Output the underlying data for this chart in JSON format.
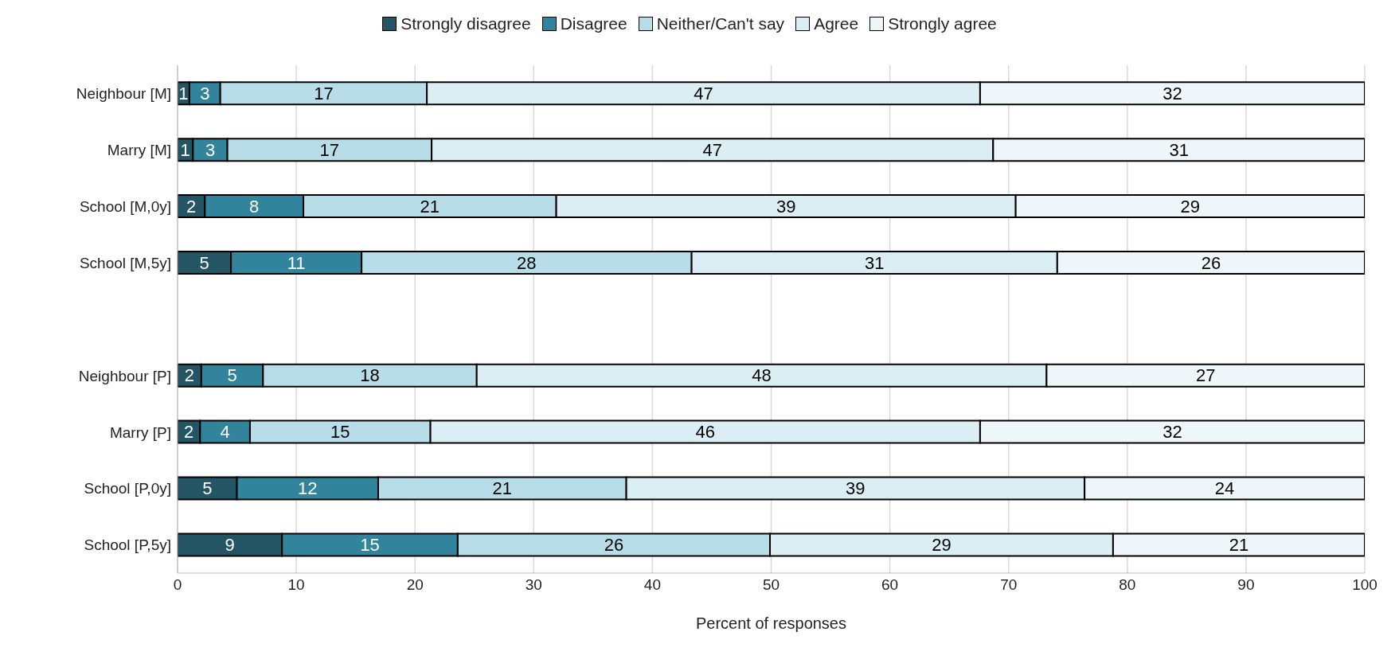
{
  "chart_data": {
    "type": "bar",
    "orientation": "horizontal",
    "stacked": true,
    "xlabel": "Percent of responses",
    "categories": [
      "Neighbour [M]",
      "Marry [M]",
      "School [M,0y]",
      "School [M,5y]",
      null,
      "Neighbour [P]",
      "Marry [P]",
      "School [P,0y]",
      "School [P,5y]"
    ],
    "series": [
      {
        "name": "Strongly disagree",
        "color": "#235565",
        "values": [
          1.0,
          1.3,
          2.3,
          4.5,
          null,
          2.0,
          1.9,
          5.0,
          8.8
        ],
        "value_labels": [
          "1",
          "1",
          "2",
          "5",
          null,
          "2",
          "2",
          "5",
          "9"
        ]
      },
      {
        "name": "Disagree",
        "color": "#31849b",
        "values": [
          2.6,
          2.9,
          8.3,
          11.0,
          null,
          5.2,
          4.2,
          11.9,
          14.8
        ],
        "value_labels": [
          "3",
          "3",
          "8",
          "11",
          null,
          "5",
          "4",
          "12",
          "15"
        ]
      },
      {
        "name": "Neither/Can't say",
        "color": "#b7dde8",
        "values": [
          17.4,
          17.2,
          21.3,
          27.8,
          null,
          18.0,
          15.2,
          20.9,
          26.3
        ],
        "value_labels": [
          "17",
          "17",
          "21",
          "28",
          null,
          "18",
          "15",
          "21",
          "26"
        ]
      },
      {
        "name": "Agree",
        "color": "#dbeef4",
        "values": [
          46.6,
          47.3,
          38.7,
          30.8,
          null,
          48.0,
          46.3,
          38.6,
          28.9
        ],
        "value_labels": [
          "47",
          "47",
          "39",
          "31",
          null,
          "48",
          "46",
          "39",
          "29"
        ]
      },
      {
        "name": "Strongly agree",
        "color": "#eef6f9",
        "values": [
          32.4,
          31.3,
          29.4,
          25.9,
          null,
          26.8,
          32.4,
          23.6,
          21.2
        ],
        "value_labels": [
          "32",
          "31",
          "29",
          "26",
          null,
          "27",
          "32",
          "24",
          "21"
        ]
      }
    ],
    "xlim": [
      0,
      100
    ],
    "xticks": [
      0,
      10,
      20,
      30,
      40,
      50,
      60,
      70,
      80,
      90,
      100
    ],
    "grid": "x",
    "legend": "top"
  }
}
